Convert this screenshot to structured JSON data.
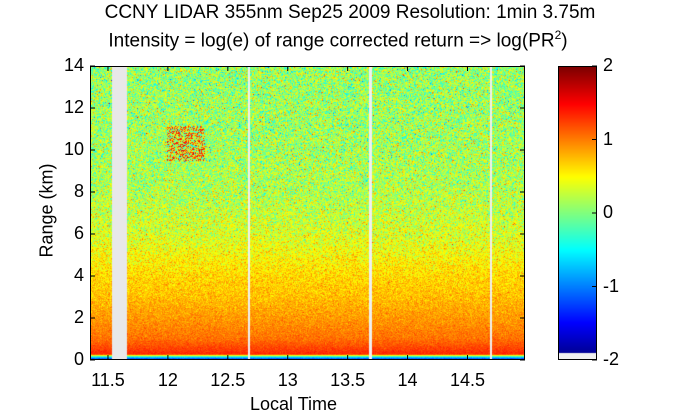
{
  "chart_data": {
    "type": "heatmap",
    "title": "CCNY LIDAR 355nm Sep25 2009 Resolution: 1min 3.75m",
    "subtitle": "Intensity = log(e) of range corrected return => log(PR",
    "subtitle_sup": "2",
    "subtitle_end": ")",
    "xlabel": "Local Time",
    "ylabel": "Range (km)",
    "xlim": [
      11.35,
      14.98
    ],
    "ylim": [
      0,
      14
    ],
    "xticks": [
      "11.5",
      "12",
      "12.5",
      "13",
      "13.5",
      "14",
      "14.5"
    ],
    "xtick_values": [
      11.5,
      12,
      12.5,
      13,
      13.5,
      14,
      14.5
    ],
    "yticks": [
      "0",
      "2",
      "4",
      "6",
      "8",
      "10",
      "12",
      "14"
    ],
    "ytick_values": [
      0,
      2,
      4,
      6,
      8,
      10,
      12,
      14
    ],
    "colorbar": {
      "range": [
        -2,
        2
      ],
      "ticks": [
        "2",
        "1",
        "0",
        "-1",
        "-2"
      ],
      "tick_values": [
        2,
        1,
        0,
        -1,
        -2
      ],
      "colormap": "jet"
    },
    "mean_profile": {
      "range_km": [
        0,
        0.15,
        0.25,
        0.5,
        1.0,
        2.0,
        3.0,
        4.0,
        5.0,
        6.0,
        8.0,
        10.0,
        14.0
      ],
      "intensity": [
        -1.6,
        -0.2,
        1.35,
        1.25,
        1.05,
        0.9,
        0.75,
        0.65,
        0.5,
        0.35,
        0.2,
        0.15,
        0.1
      ],
      "noise_std": [
        0.05,
        0.05,
        0.05,
        0.06,
        0.08,
        0.1,
        0.12,
        0.15,
        0.2,
        0.25,
        0.3,
        0.33,
        0.35
      ]
    },
    "data_gaps": [
      {
        "start": 11.52,
        "end": 11.65,
        "fill": "gray"
      },
      {
        "start": 12.66,
        "end": 12.68,
        "fill": "white"
      },
      {
        "start": 13.68,
        "end": 13.7,
        "fill": "white"
      },
      {
        "start": 14.69,
        "end": 14.71,
        "fill": "white"
      }
    ],
    "features": [
      {
        "type": "aerosol layer",
        "time": [
          11.98,
          12.3
        ],
        "range_km": [
          9.5,
          11.2
        ],
        "intensity": 1.3
      }
    ]
  }
}
